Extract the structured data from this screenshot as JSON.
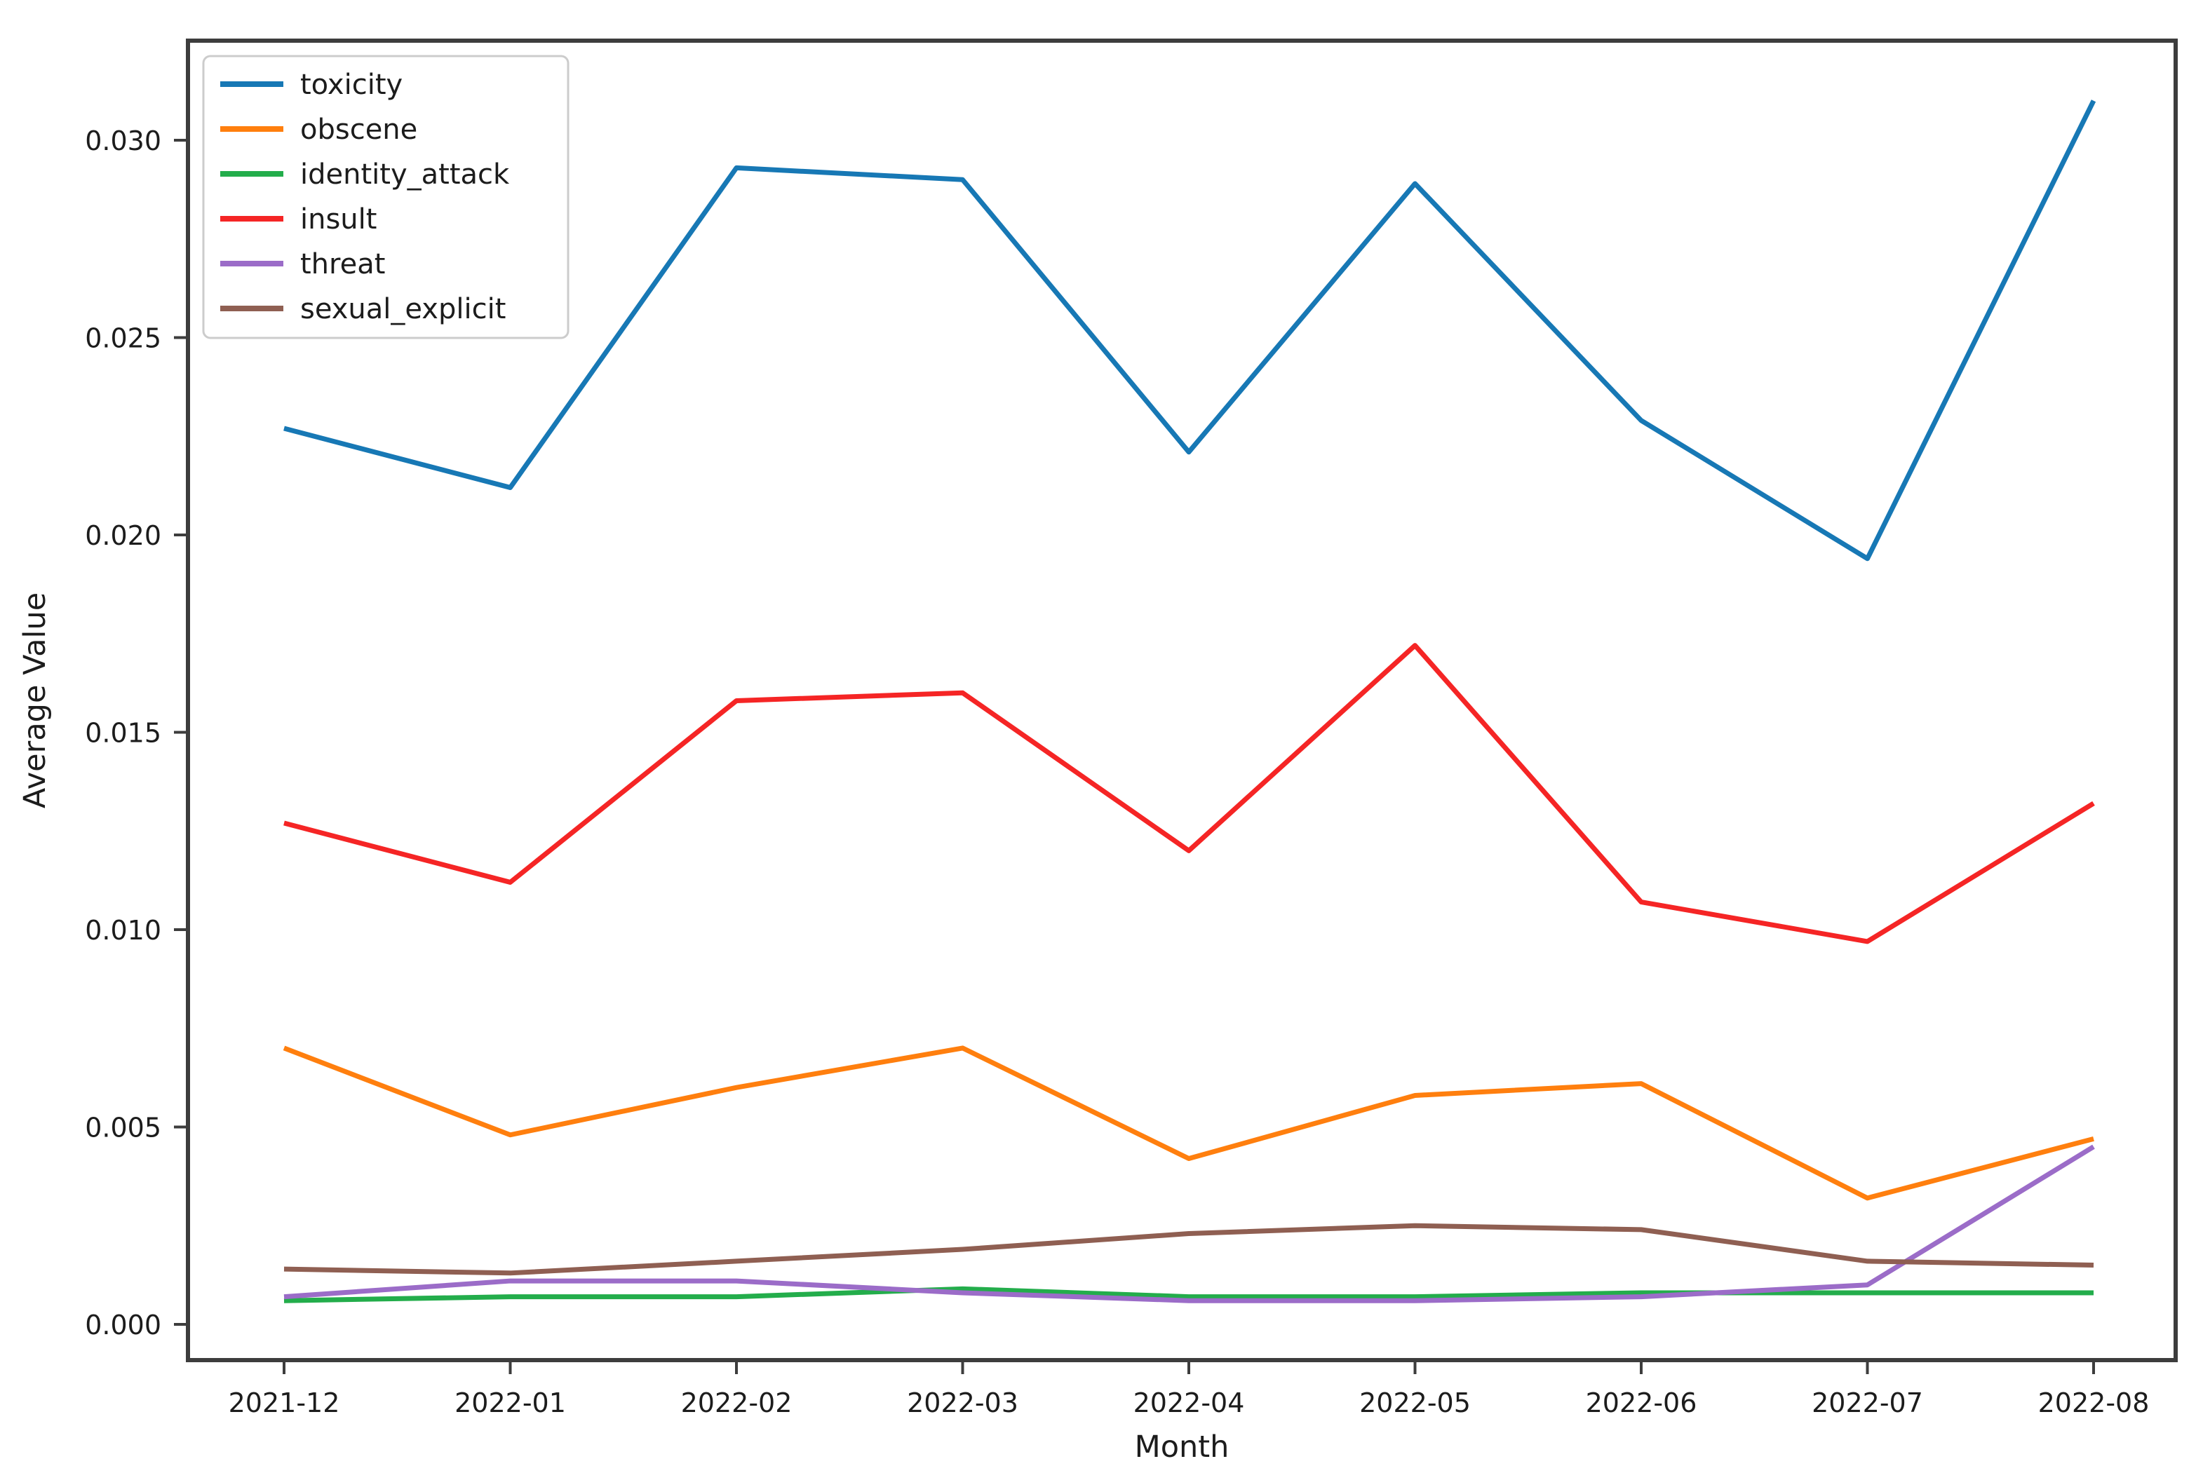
{
  "chart_data": {
    "type": "line",
    "title": "",
    "xlabel": "Month",
    "ylabel": "Average Value",
    "categories": [
      "2021-12",
      "2022-01",
      "2022-02",
      "2022-03",
      "2022-04",
      "2022-05",
      "2022-06",
      "2022-07",
      "2022-08"
    ],
    "ylim": [
      -0.001,
      0.0325
    ],
    "yticks": [
      "0.000",
      "0.005",
      "0.010",
      "0.015",
      "0.020",
      "0.025",
      "0.030"
    ],
    "grid": false,
    "legend_position": "upper left",
    "series": [
      {
        "name": "toxicity",
        "color": "#1778b5",
        "values": [
          0.0227,
          0.0212,
          0.0293,
          0.029,
          0.0221,
          0.0289,
          0.0229,
          0.0194,
          0.031
        ]
      },
      {
        "name": "obscene",
        "color": "#ff7f0e",
        "values": [
          0.007,
          0.0048,
          0.006,
          0.007,
          0.0042,
          0.0058,
          0.0061,
          0.0032,
          0.0047
        ]
      },
      {
        "name": "identity_attack",
        "color": "#23ad4b",
        "values": [
          0.0006,
          0.0007,
          0.0007,
          0.0009,
          0.0007,
          0.0007,
          0.0008,
          0.0008,
          0.0008
        ]
      },
      {
        "name": "insult",
        "color": "#f52525",
        "values": [
          0.0127,
          0.0112,
          0.0158,
          0.016,
          0.012,
          0.0172,
          0.0107,
          0.0097,
          0.0132
        ]
      },
      {
        "name": "threat",
        "color": "#9b6cc8",
        "values": [
          0.0007,
          0.0011,
          0.0011,
          0.0008,
          0.0006,
          0.0006,
          0.0007,
          0.001,
          0.0045
        ]
      },
      {
        "name": "sexual_explicit",
        "color": "#8f5f52",
        "values": [
          0.0014,
          0.0013,
          0.0016,
          0.0019,
          0.0023,
          0.0025,
          0.0024,
          0.0016,
          0.0015
        ]
      }
    ]
  }
}
